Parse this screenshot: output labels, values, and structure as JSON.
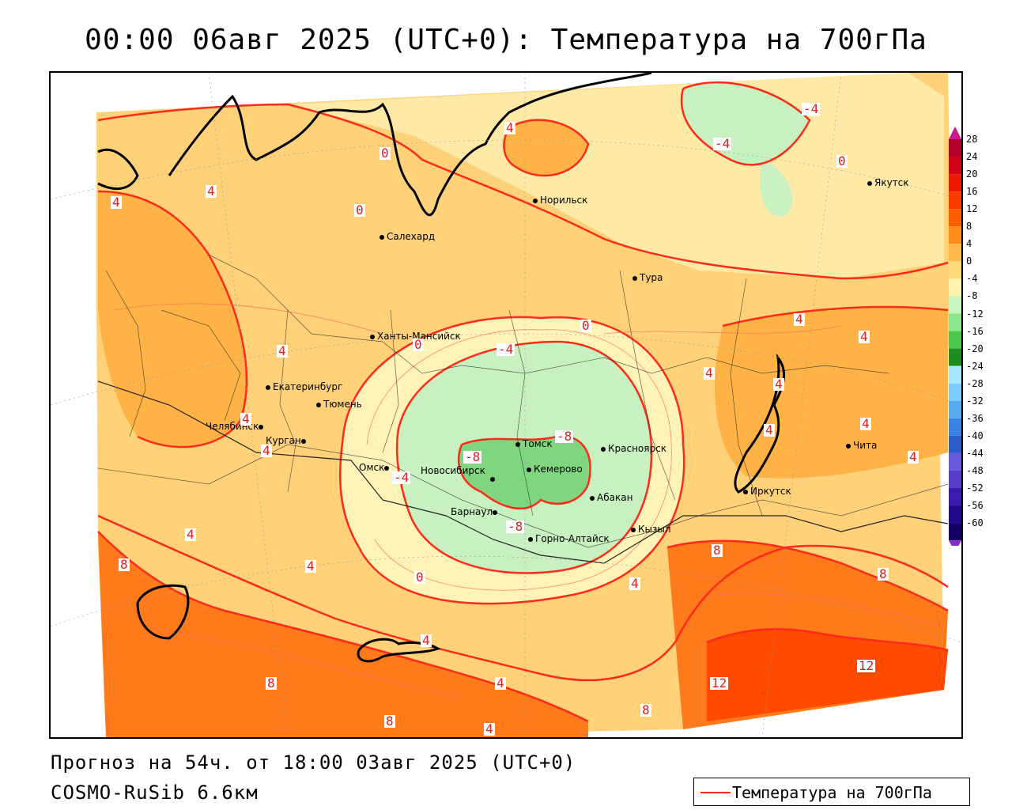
{
  "title": "00:00 06авг 2025 (UTC+0): Температура на 700гПа",
  "footer": {
    "forecast": "Прогноз на 54ч. от 18:00 03авг 2025 (UTC+0)",
    "model": "COSMO-RuSib 6.6км"
  },
  "legend": {
    "label": "Температура на 700гПа",
    "line_color": "#ff2a1a"
  },
  "colorbar": {
    "levels": [
      28,
      24,
      20,
      16,
      12,
      8,
      4,
      0,
      -4,
      -8,
      -12,
      -16,
      -20,
      -24,
      -28,
      -32,
      -36,
      -40,
      -44,
      -48,
      -52,
      -56,
      -60
    ],
    "colors": [
      "#b3002a",
      "#d4001a",
      "#ee1a00",
      "#ff3a00",
      "#ff5e00",
      "#ff8c1a",
      "#ffb84a",
      "#ffd978",
      "#fff3b0",
      "#c8f5c0",
      "#8ee68e",
      "#4cc84c",
      "#1e8c1e",
      "#a8e6ff",
      "#80ccff",
      "#5aaaf0",
      "#3c82e0",
      "#2a5cc8",
      "#6a5ae0",
      "#5a3ccc",
      "#3a1ab0",
      "#22088c",
      "#140066"
    ],
    "top_arrow_color": "#cc1a8c",
    "bottom_arrow_color": "#8a2ac8"
  },
  "cities": [
    {
      "name": "Якутск"
    },
    {
      "name": "Норильск"
    },
    {
      "name": "Салехард"
    },
    {
      "name": "Тура"
    },
    {
      "name": "Ханты-Мансийск"
    },
    {
      "name": "Екатеринбург"
    },
    {
      "name": "Тюмень"
    },
    {
      "name": "Челябинск"
    },
    {
      "name": "Курган"
    },
    {
      "name": "Омск"
    },
    {
      "name": "Томск"
    },
    {
      "name": "Красноярск"
    },
    {
      "name": "Новосибирск"
    },
    {
      "name": "Кемерово"
    },
    {
      "name": "Абакан"
    },
    {
      "name": "Барнаул"
    },
    {
      "name": "Горно-Алтайск"
    },
    {
      "name": "Кызыл"
    },
    {
      "name": "Иркутск"
    },
    {
      "name": "Чита"
    }
  ],
  "contour_labels": [
    "-4",
    "-4",
    "0",
    "4",
    "0",
    "0",
    "4",
    "4",
    "4",
    "4",
    "4",
    "0",
    "-4",
    "-8",
    "-8",
    "-4",
    "-8",
    "0",
    "0",
    "4",
    "4",
    "4",
    "4",
    "4",
    "4",
    "4",
    "4",
    "8",
    "8",
    "8",
    "4",
    "4",
    "8",
    "8",
    "8",
    "12",
    "12",
    "4",
    "4",
    "4"
  ]
}
